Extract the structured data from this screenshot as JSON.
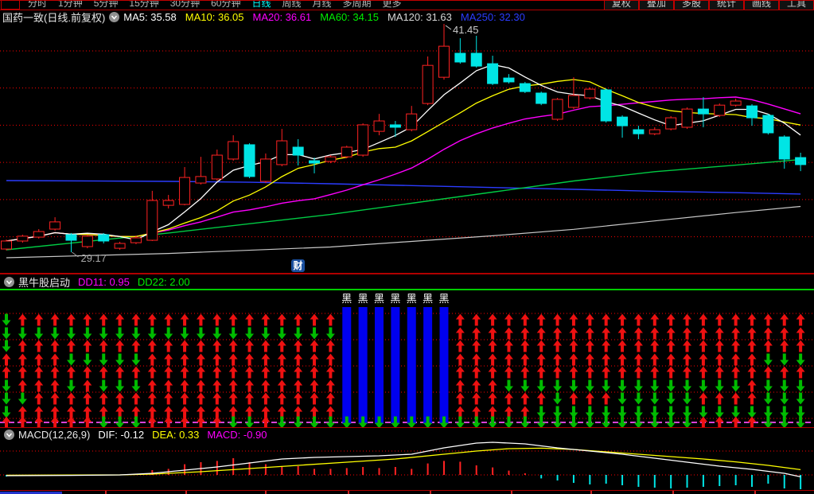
{
  "top_menu": {
    "left_items": [
      "分时",
      "1分钟",
      "5分钟",
      "15分钟",
      "30分钟",
      "60分钟",
      "日线",
      "周线",
      "月线",
      "多周期",
      "更多"
    ],
    "active_item": "日线",
    "right_items": [
      "复权",
      "叠加",
      "多股",
      "统计",
      "画线",
      "工具"
    ],
    "active_color": "#00ffff"
  },
  "main_chart": {
    "title": "国药一致(日线.前复权)",
    "ma_labels": [
      {
        "text": "MA5: 35.58",
        "color": "#ffffff"
      },
      {
        "text": "MA10: 36.05",
        "color": "#ffff00"
      },
      {
        "text": "MA20: 36.61",
        "color": "#ff00ff"
      },
      {
        "text": "MA60: 34.15",
        "color": "#00ee00"
      },
      {
        "text": "MA120: 31.63",
        "color": "#d8d8d8"
      },
      {
        "text": "MA250: 32.30",
        "color": "#2b3cff"
      }
    ],
    "annotations": {
      "high": "41.45",
      "low": "29.17"
    },
    "watermark": {
      "text": "财",
      "bg": "#1a4f9e",
      "color": "#ffffff"
    },
    "price_axis": {
      "min": 29.17,
      "max": 41.45,
      "gridline_prices": [
        40,
        38,
        36,
        34,
        32,
        30
      ]
    }
  },
  "panel2": {
    "title": "黑牛股启动",
    "dd11": {
      "text": "DD11: 0.95",
      "color": "#ff00ff"
    },
    "dd22": {
      "text": "DD22: 2.00",
      "color": "#00ee00"
    },
    "bar_label": "黑",
    "up_color": "#ee1111",
    "down_color": "#00bb00",
    "bar_color": "#0000ee"
  },
  "macd_panel": {
    "title": "MACD(12,26,9)",
    "dif": {
      "text": "DIF: -0.12",
      "color": "#ffffff"
    },
    "dea": {
      "text": "DEA: 0.33",
      "color": "#ffff00"
    },
    "macd": {
      "text": "MACD: -0.90",
      "color": "#ff00ff"
    }
  },
  "chart_data": {
    "type": "candlestick+indicators",
    "candles_format": [
      "open",
      "close",
      "high",
      "low",
      "dir(1=up-red-hollow,0=down-cyan)"
    ],
    "candles": [
      [
        29.34,
        29.77,
        29.85,
        29.26,
        1
      ],
      [
        29.77,
        30.03,
        30.11,
        29.68,
        1
      ],
      [
        29.98,
        30.28,
        30.41,
        29.9,
        1
      ],
      [
        30.41,
        30.8,
        31.05,
        30.33,
        1
      ],
      [
        30.11,
        29.81,
        30.2,
        29.17,
        0
      ],
      [
        29.47,
        30.03,
        30.11,
        29.38,
        1
      ],
      [
        30.11,
        29.77,
        30.2,
        29.64,
        0
      ],
      [
        29.38,
        29.64,
        29.73,
        29.3,
        1
      ],
      [
        29.68,
        29.94,
        30.07,
        29.6,
        1
      ],
      [
        29.81,
        31.95,
        32.47,
        29.77,
        1
      ],
      [
        31.69,
        31.95,
        32.25,
        31.52,
        1
      ],
      [
        31.74,
        33.19,
        33.75,
        31.69,
        1
      ],
      [
        32.89,
        33.24,
        34.3,
        32.81,
        1
      ],
      [
        33.11,
        34.39,
        34.69,
        33.02,
        1
      ],
      [
        34.18,
        35.12,
        35.46,
        34.09,
        1
      ],
      [
        34.95,
        33.24,
        35.03,
        33.15,
        0
      ],
      [
        32.98,
        34.18,
        34.48,
        32.89,
        1
      ],
      [
        33.88,
        35.16,
        35.8,
        33.79,
        1
      ],
      [
        34.82,
        34.39,
        35.25,
        33.83,
        0
      ],
      [
        34.09,
        33.96,
        34.26,
        33.41,
        0
      ],
      [
        34.05,
        34.3,
        34.39,
        33.96,
        1
      ],
      [
        34.3,
        34.82,
        34.9,
        34.22,
        1
      ],
      [
        34.39,
        36.02,
        36.1,
        34.3,
        1
      ],
      [
        35.67,
        36.23,
        36.61,
        35.46,
        1
      ],
      [
        36.02,
        35.89,
        36.23,
        35.37,
        0
      ],
      [
        35.76,
        36.61,
        37.04,
        35.67,
        1
      ],
      [
        37.17,
        39.22,
        39.7,
        37.08,
        1
      ],
      [
        38.58,
        40.25,
        41.45,
        38.45,
        1
      ],
      [
        39.87,
        39.4,
        40.68,
        39.31,
        0
      ],
      [
        39.87,
        39.18,
        40.81,
        39.1,
        0
      ],
      [
        39.31,
        38.24,
        39.74,
        38.16,
        0
      ],
      [
        38.54,
        38.33,
        38.75,
        38.24,
        0
      ],
      [
        38.24,
        37.81,
        38.33,
        37.73,
        0
      ],
      [
        37.73,
        37.17,
        37.81,
        37.08,
        0
      ],
      [
        36.32,
        37.39,
        37.47,
        36.23,
        1
      ],
      [
        36.96,
        37.6,
        38.58,
        36.87,
        1
      ],
      [
        37.47,
        37.94,
        38.03,
        37.39,
        1
      ],
      [
        37.9,
        36.23,
        37.98,
        36.14,
        0
      ],
      [
        36.44,
        35.97,
        36.53,
        35.33,
        0
      ],
      [
        35.76,
        35.54,
        35.97,
        35.25,
        0
      ],
      [
        35.54,
        35.76,
        35.89,
        35.46,
        1
      ],
      [
        35.8,
        36.4,
        36.49,
        35.72,
        1
      ],
      [
        35.89,
        36.87,
        36.96,
        35.8,
        1
      ],
      [
        36.87,
        36.61,
        37.51,
        35.89,
        0
      ],
      [
        36.53,
        37.08,
        37.17,
        36.44,
        1
      ],
      [
        37.08,
        37.3,
        37.43,
        37.0,
        1
      ],
      [
        37.04,
        36.4,
        37.13,
        35.97,
        0
      ],
      [
        36.53,
        35.59,
        36.61,
        35.5,
        0
      ],
      [
        35.37,
        34.18,
        35.46,
        33.66,
        0
      ],
      [
        34.26,
        33.88,
        34.52,
        33.53,
        0
      ]
    ],
    "ma60": [
      [
        0,
        29.3
      ],
      [
        10,
        30.2
      ],
      [
        20,
        31.2
      ],
      [
        25,
        31.8
      ],
      [
        30,
        32.4
      ],
      [
        35,
        33.0
      ],
      [
        40,
        33.5
      ],
      [
        45,
        33.85
      ],
      [
        49,
        34.15
      ]
    ],
    "ma120": [
      [
        0,
        28.87
      ],
      [
        10,
        29.1
      ],
      [
        20,
        29.45
      ],
      [
        30,
        30.05
      ],
      [
        35,
        30.4
      ],
      [
        40,
        30.85
      ],
      [
        45,
        31.3
      ],
      [
        49,
        31.63
      ]
    ],
    "ma250": [
      [
        0,
        33.02
      ],
      [
        10,
        32.98
      ],
      [
        15,
        32.93
      ],
      [
        20,
        32.85
      ],
      [
        25,
        32.75
      ],
      [
        30,
        32.65
      ],
      [
        35,
        32.55
      ],
      [
        40,
        32.45
      ],
      [
        45,
        32.37
      ],
      [
        49,
        32.3
      ]
    ],
    "signal_columns": [
      "gggrrgggr",
      "rgrrrrgrr",
      "rgrrrrrrr",
      "rgrrrrrrr",
      "rgrgrgrrr",
      "rgrgrrrrr",
      "rgrgrgrrg",
      "rgrgrgrrg",
      "rgrgrgrrg",
      "rgrrrrrrr",
      "rgrrrrrrr",
      "rgrrrrrrr",
      "rgrrrrrrr",
      "rgrrrrrrr",
      "rgrrrrrrg",
      "rgrrrrrrg",
      "rgrrrrrrr",
      "rgrrrrrrg",
      "rgrrrrrrg",
      "rgrrrrrrg",
      "rgrrrrrrg",
      "rrrrrrrrg",
      "rrrrrrrrg",
      "rrrrrrrrg",
      "rrrrrrrrg",
      "rrrrrrrrg",
      "rrrrrrrrg",
      "rrrrrrrrg",
      "rrrrrrrrg",
      "rrrrrrrrg",
      "rrrrrrrrg",
      "rrrrrgrrg",
      "rrrrrgrrg",
      "rrrrrgrgg",
      "rrrrrgggg",
      "rrrrrgrgg",
      "rrrrrgrgg",
      "rrrrrgrgg",
      "rrrrrgggg",
      "rrrrrgggg",
      "rrrrrgggg",
      "rrrrrgggg",
      "rrrrrgggg",
      "rrrrrgrgr",
      "rrrrrgrgr",
      "rrrrrgrgr",
      "rrrrrrrgr",
      "rrrgrgggg",
      "rrrgrgggg",
      "rrrgrgggg"
    ],
    "signal_bars_cols": [
      21,
      22,
      23,
      24,
      25,
      26,
      27
    ],
    "macd": {
      "histogram": [
        -0.1,
        0,
        0,
        0,
        0,
        0,
        0,
        0,
        0.05,
        0.3,
        0.38,
        0.67,
        0.8,
        0.88,
        1.05,
        0.8,
        0.67,
        0.5,
        0.55,
        0.38,
        0.38,
        0.43,
        0.5,
        0.43,
        0.5,
        0.38,
        0.72,
        0.88,
        0.83,
        0.6,
        0.47,
        0.27,
        0.1,
        -0.22,
        -0.35,
        -0.5,
        -0.6,
        -0.55,
        -0.65,
        -0.75,
        -0.8,
        -0.85,
        -0.8,
        -0.75,
        -0.7,
        -0.65,
        -0.75,
        -0.55,
        -0.85,
        -0.9
      ],
      "dif": [
        [
          0,
          -0.05
        ],
        [
          4,
          -0.03
        ],
        [
          7,
          0
        ],
        [
          9,
          0.1
        ],
        [
          11,
          0.3
        ],
        [
          13,
          0.5
        ],
        [
          15,
          0.75
        ],
        [
          17,
          1.0
        ],
        [
          19,
          1.1
        ],
        [
          21,
          1.15
        ],
        [
          23,
          1.2
        ],
        [
          25,
          1.3
        ],
        [
          27,
          1.7
        ],
        [
          29,
          2.0
        ],
        [
          30,
          2.05
        ],
        [
          32,
          1.95
        ],
        [
          34,
          1.7
        ],
        [
          36,
          1.5
        ],
        [
          38,
          1.3
        ],
        [
          40,
          1.05
        ],
        [
          42,
          0.8
        ],
        [
          44,
          0.55
        ],
        [
          46,
          0.35
        ],
        [
          48,
          0.1
        ],
        [
          49,
          -0.12
        ]
      ],
      "dea": [
        [
          0,
          -0.02
        ],
        [
          7,
          0
        ],
        [
          9,
          0.05
        ],
        [
          12,
          0.2
        ],
        [
          15,
          0.4
        ],
        [
          18,
          0.6
        ],
        [
          21,
          0.8
        ],
        [
          24,
          1.0
        ],
        [
          27,
          1.3
        ],
        [
          29,
          1.5
        ],
        [
          31,
          1.65
        ],
        [
          33,
          1.68
        ],
        [
          35,
          1.6
        ],
        [
          37,
          1.45
        ],
        [
          39,
          1.3
        ],
        [
          41,
          1.15
        ],
        [
          43,
          1.0
        ],
        [
          45,
          0.82
        ],
        [
          47,
          0.6
        ],
        [
          49,
          0.33
        ]
      ]
    },
    "bottom_axis_ticks_x": [
      132,
      233,
      333,
      437,
      540,
      642,
      742,
      845,
      948
    ]
  }
}
